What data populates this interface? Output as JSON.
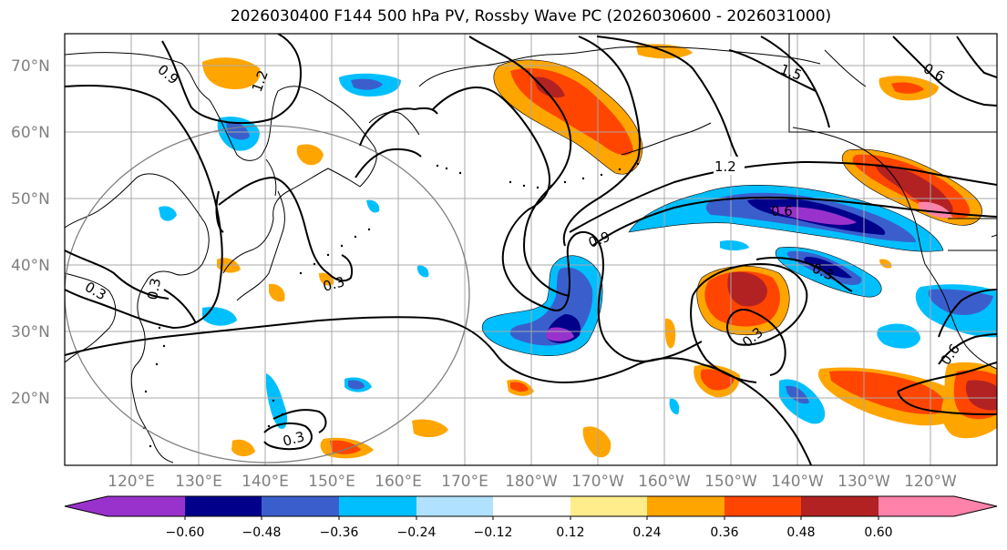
{
  "title": "2026030400 F144 500 hPa PV, Rossby Wave PC (2026030600 - 2026031000)",
  "lat_labels": [
    "70°N",
    "60°N",
    "50°N",
    "40°N",
    "30°N",
    "20°N"
  ],
  "lon_labels": [
    "120°E",
    "130°E",
    "140°E",
    "150°E",
    "160°E",
    "170°E",
    "180°W",
    "170°W",
    "160°W",
    "150°W",
    "140°W",
    "130°W",
    "120°W"
  ],
  "contour_labels": [
    "0.9",
    "1.2",
    "1.5",
    "1.2",
    "0.6",
    "1.2",
    "0.6",
    "0.9",
    "0.6",
    "0.3",
    "0.3",
    "0.3",
    "0.3",
    "0.3",
    "0.6",
    "0.3"
  ],
  "colorbar": {
    "colors": [
      "#9932cc",
      "#00008b",
      "#3a5fcd",
      "#00bfff",
      "#b0e2ff",
      "#ffffff",
      "#ffec8b",
      "#ffa500",
      "#ff4500",
      "#b22222",
      "#ff82ab"
    ],
    "tick_labels": [
      "−0.60",
      "−0.48",
      "−0.36",
      "−0.24",
      "−0.12",
      "0.12",
      "0.24",
      "0.36",
      "0.48",
      "0.60"
    ]
  }
}
